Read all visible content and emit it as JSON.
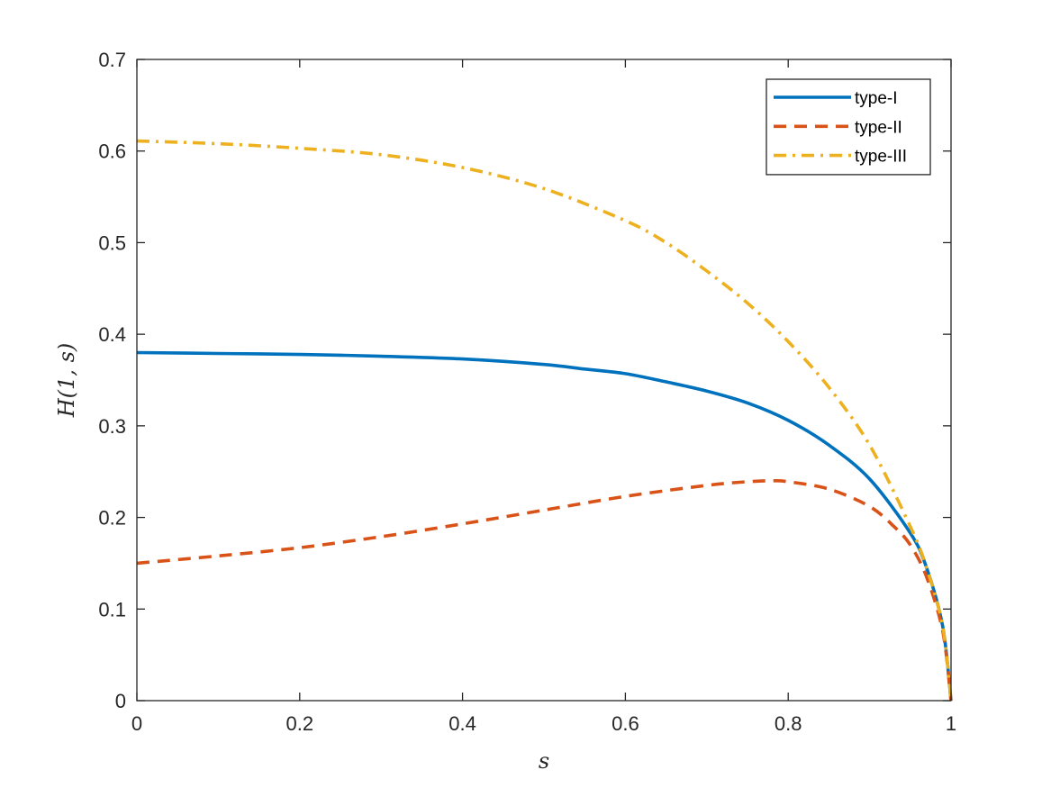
{
  "chart_data": {
    "type": "line",
    "title": "",
    "xlabel": "s",
    "ylabel": "H(1, s)",
    "xlim": [
      0,
      1
    ],
    "ylim": [
      0,
      0.7
    ],
    "xticks": [
      0,
      0.2,
      0.4,
      0.6,
      0.8,
      1
    ],
    "xtick_labels": [
      "0",
      "0.2",
      "0.4",
      "0.6",
      "0.8",
      "1"
    ],
    "yticks": [
      0,
      0.1,
      0.2,
      0.3,
      0.4,
      0.5,
      0.6,
      0.7
    ],
    "ytick_labels": [
      "0",
      "0.1",
      "0.2",
      "0.3",
      "0.4",
      "0.5",
      "0.6",
      "0.7"
    ],
    "grid": false,
    "legend_position": "top-right",
    "series": [
      {
        "name": "type-I",
        "color": "#0072BD",
        "dash": "solid",
        "x": [
          0,
          0.1,
          0.2,
          0.3,
          0.4,
          0.5,
          0.55,
          0.6,
          0.65,
          0.7,
          0.75,
          0.8,
          0.85,
          0.9,
          0.95,
          0.97,
          0.99,
          1.0
        ],
        "y": [
          0.38,
          0.379,
          0.378,
          0.376,
          0.373,
          0.367,
          0.362,
          0.357,
          0.348,
          0.338,
          0.325,
          0.306,
          0.279,
          0.242,
          0.183,
          0.145,
          0.08,
          0.0
        ]
      },
      {
        "name": "type-II",
        "color": "#D95319",
        "dash": "dashed",
        "x": [
          0,
          0.1,
          0.2,
          0.3,
          0.4,
          0.5,
          0.6,
          0.7,
          0.75,
          0.78,
          0.8,
          0.85,
          0.9,
          0.93,
          0.95,
          0.97,
          0.99,
          1.0
        ],
        "y": [
          0.15,
          0.158,
          0.167,
          0.179,
          0.193,
          0.208,
          0.223,
          0.235,
          0.239,
          0.24,
          0.239,
          0.231,
          0.212,
          0.19,
          0.17,
          0.135,
          0.075,
          0.0
        ]
      },
      {
        "name": "type-III",
        "color": "#EDB120",
        "dash": "dashdot",
        "x": [
          0,
          0.1,
          0.2,
          0.3,
          0.4,
          0.5,
          0.6,
          0.65,
          0.7,
          0.75,
          0.8,
          0.85,
          0.9,
          0.95,
          0.97,
          0.99,
          1.0
        ],
        "y": [
          0.611,
          0.608,
          0.603,
          0.596,
          0.582,
          0.559,
          0.524,
          0.5,
          0.469,
          0.434,
          0.392,
          0.342,
          0.279,
          0.19,
          0.145,
          0.08,
          0.0
        ]
      }
    ]
  }
}
